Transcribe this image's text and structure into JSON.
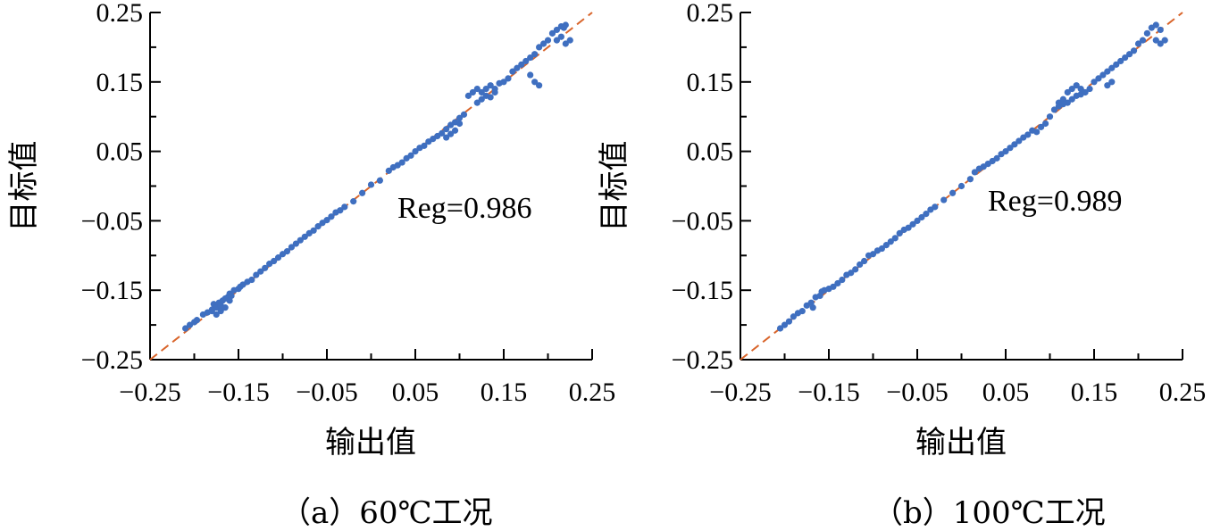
{
  "chart_data": [
    {
      "type": "scatter",
      "panel": "a",
      "caption": "（a）60℃工况",
      "xlabel": "输出值",
      "ylabel": "目标值",
      "annotation": "Reg=0.986",
      "xlim": [
        -0.25,
        0.25
      ],
      "ylim": [
        -0.25,
        0.25
      ],
      "xticks": [
        -0.25,
        -0.15,
        -0.05,
        0.05,
        0.15,
        0.25
      ],
      "yticks": [
        -0.25,
        -0.15,
        -0.05,
        0.05,
        0.15,
        0.25
      ],
      "xtick_labels": [
        "−0.25",
        "−0.15",
        "−0.05",
        "0.05",
        "0.15",
        "0.25"
      ],
      "ytick_labels": [
        "−0.25",
        "−0.15",
        "−0.05",
        "0.05",
        "0.15",
        "0.25"
      ],
      "reference_line": {
        "slope": 1,
        "intercept": 0,
        "style": "dashed",
        "color": "#d9652b"
      },
      "point_color": "#3f6fc0",
      "points": [
        [
          -0.21,
          -0.205
        ],
        [
          -0.205,
          -0.2
        ],
        [
          -0.2,
          -0.196
        ],
        [
          -0.197,
          -0.193
        ],
        [
          -0.19,
          -0.185
        ],
        [
          -0.185,
          -0.182
        ],
        [
          -0.18,
          -0.18
        ],
        [
          -0.178,
          -0.17
        ],
        [
          -0.175,
          -0.175
        ],
        [
          -0.172,
          -0.168
        ],
        [
          -0.17,
          -0.172
        ],
        [
          -0.168,
          -0.165
        ],
        [
          -0.165,
          -0.162
        ],
        [
          -0.162,
          -0.16
        ],
        [
          -0.16,
          -0.155
        ],
        [
          -0.158,
          -0.158
        ],
        [
          -0.155,
          -0.15
        ],
        [
          -0.15,
          -0.148
        ],
        [
          -0.148,
          -0.145
        ],
        [
          -0.145,
          -0.142
        ],
        [
          -0.175,
          -0.185
        ],
        [
          -0.17,
          -0.18
        ],
        [
          -0.165,
          -0.175
        ],
        [
          -0.18,
          -0.178
        ],
        [
          -0.16,
          -0.165
        ],
        [
          -0.14,
          -0.138
        ],
        [
          -0.135,
          -0.135
        ],
        [
          -0.13,
          -0.128
        ],
        [
          -0.125,
          -0.123
        ],
        [
          -0.12,
          -0.118
        ],
        [
          -0.115,
          -0.112
        ],
        [
          -0.11,
          -0.108
        ],
        [
          -0.105,
          -0.103
        ],
        [
          -0.1,
          -0.098
        ],
        [
          -0.095,
          -0.094
        ],
        [
          -0.09,
          -0.088
        ],
        [
          -0.085,
          -0.083
        ],
        [
          -0.08,
          -0.078
        ],
        [
          -0.075,
          -0.073
        ],
        [
          -0.07,
          -0.068
        ],
        [
          -0.065,
          -0.064
        ],
        [
          -0.06,
          -0.058
        ],
        [
          -0.055,
          -0.053
        ],
        [
          -0.05,
          -0.049
        ],
        [
          -0.045,
          -0.044
        ],
        [
          -0.04,
          -0.038
        ],
        [
          -0.035,
          -0.035
        ],
        [
          -0.03,
          -0.03
        ],
        [
          -0.02,
          -0.022
        ],
        [
          -0.01,
          -0.01
        ],
        [
          0.0,
          0.002
        ],
        [
          0.01,
          0.008
        ],
        [
          0.02,
          0.022
        ],
        [
          0.025,
          0.027
        ],
        [
          0.03,
          0.03
        ],
        [
          0.035,
          0.034
        ],
        [
          0.04,
          0.04
        ],
        [
          0.045,
          0.044
        ],
        [
          0.05,
          0.05
        ],
        [
          0.055,
          0.055
        ],
        [
          0.06,
          0.058
        ],
        [
          0.065,
          0.064
        ],
        [
          0.07,
          0.068
        ],
        [
          0.075,
          0.072
        ],
        [
          0.08,
          0.076
        ],
        [
          0.085,
          0.082
        ],
        [
          0.09,
          0.088
        ],
        [
          0.095,
          0.092
        ],
        [
          0.1,
          0.098
        ],
        [
          0.105,
          0.103
        ],
        [
          0.085,
          0.07
        ],
        [
          0.09,
          0.075
        ],
        [
          0.095,
          0.08
        ],
        [
          0.1,
          0.09
        ],
        [
          0.11,
          0.13
        ],
        [
          0.115,
          0.135
        ],
        [
          0.12,
          0.14
        ],
        [
          0.125,
          0.135
        ],
        [
          0.13,
          0.14
        ],
        [
          0.135,
          0.145
        ],
        [
          0.14,
          0.14
        ],
        [
          0.12,
          0.12
        ],
        [
          0.125,
          0.125
        ],
        [
          0.13,
          0.13
        ],
        [
          0.135,
          0.128
        ],
        [
          0.14,
          0.135
        ],
        [
          0.145,
          0.148
        ],
        [
          0.15,
          0.15
        ],
        [
          0.155,
          0.155
        ],
        [
          0.16,
          0.165
        ],
        [
          0.165,
          0.17
        ],
        [
          0.17,
          0.175
        ],
        [
          0.175,
          0.18
        ],
        [
          0.18,
          0.185
        ],
        [
          0.185,
          0.19
        ],
        [
          0.18,
          0.16
        ],
        [
          0.185,
          0.15
        ],
        [
          0.19,
          0.145
        ],
        [
          0.19,
          0.2
        ],
        [
          0.195,
          0.205
        ],
        [
          0.2,
          0.21
        ],
        [
          0.205,
          0.22
        ],
        [
          0.21,
          0.225
        ],
        [
          0.215,
          0.23
        ],
        [
          0.22,
          0.232
        ],
        [
          0.21,
          0.21
        ],
        [
          0.215,
          0.215
        ],
        [
          0.22,
          0.205
        ],
        [
          0.225,
          0.21
        ],
        [
          0.218,
          0.228
        ]
      ]
    },
    {
      "type": "scatter",
      "panel": "b",
      "caption": "（b）100℃工况",
      "xlabel": "输出值",
      "ylabel": "目标值",
      "annotation": "Reg=0.989",
      "xlim": [
        -0.25,
        0.25
      ],
      "ylim": [
        -0.25,
        0.25
      ],
      "xticks": [
        -0.25,
        -0.15,
        -0.05,
        0.05,
        0.15,
        0.25
      ],
      "yticks": [
        -0.25,
        -0.15,
        -0.05,
        0.05,
        0.15,
        0.25
      ],
      "xtick_labels": [
        "−0.25",
        "−0.15",
        "−0.05",
        "0.05",
        "0.15",
        "0.25"
      ],
      "ytick_labels": [
        "−0.25",
        "−0.15",
        "−0.05",
        "0.05",
        "0.15",
        "0.25"
      ],
      "reference_line": {
        "slope": 1,
        "intercept": 0,
        "style": "dashed",
        "color": "#d9652b"
      },
      "point_color": "#3f6fc0",
      "points": [
        [
          -0.205,
          -0.205
        ],
        [
          -0.2,
          -0.2
        ],
        [
          -0.195,
          -0.195
        ],
        [
          -0.19,
          -0.188
        ],
        [
          -0.185,
          -0.183
        ],
        [
          -0.18,
          -0.18
        ],
        [
          -0.175,
          -0.172
        ],
        [
          -0.17,
          -0.168
        ],
        [
          -0.168,
          -0.175
        ],
        [
          -0.165,
          -0.16
        ],
        [
          -0.16,
          -0.158
        ],
        [
          -0.158,
          -0.152
        ],
        [
          -0.155,
          -0.15
        ],
        [
          -0.15,
          -0.148
        ],
        [
          -0.145,
          -0.145
        ],
        [
          -0.14,
          -0.14
        ],
        [
          -0.135,
          -0.135
        ],
        [
          -0.13,
          -0.128
        ],
        [
          -0.125,
          -0.125
        ],
        [
          -0.12,
          -0.12
        ],
        [
          -0.115,
          -0.113
        ],
        [
          -0.11,
          -0.108
        ],
        [
          -0.105,
          -0.1
        ],
        [
          -0.1,
          -0.098
        ],
        [
          -0.095,
          -0.093
        ],
        [
          -0.09,
          -0.09
        ],
        [
          -0.085,
          -0.085
        ],
        [
          -0.08,
          -0.08
        ],
        [
          -0.075,
          -0.075
        ],
        [
          -0.07,
          -0.068
        ],
        [
          -0.065,
          -0.063
        ],
        [
          -0.06,
          -0.06
        ],
        [
          -0.055,
          -0.055
        ],
        [
          -0.05,
          -0.05
        ],
        [
          -0.045,
          -0.045
        ],
        [
          -0.04,
          -0.04
        ],
        [
          -0.035,
          -0.034
        ],
        [
          -0.03,
          -0.03
        ],
        [
          -0.02,
          -0.02
        ],
        [
          -0.01,
          -0.01
        ],
        [
          0.0,
          0.0
        ],
        [
          0.01,
          0.01
        ],
        [
          0.015,
          0.02
        ],
        [
          0.02,
          0.025
        ],
        [
          0.025,
          0.028
        ],
        [
          0.03,
          0.032
        ],
        [
          0.035,
          0.036
        ],
        [
          0.04,
          0.04
        ],
        [
          0.045,
          0.046
        ],
        [
          0.05,
          0.05
        ],
        [
          0.055,
          0.055
        ],
        [
          0.06,
          0.06
        ],
        [
          0.065,
          0.065
        ],
        [
          0.07,
          0.07
        ],
        [
          0.075,
          0.074
        ],
        [
          0.08,
          0.08
        ],
        [
          0.085,
          0.078
        ],
        [
          0.09,
          0.085
        ],
        [
          0.095,
          0.09
        ],
        [
          0.1,
          0.1
        ],
        [
          0.105,
          0.11
        ],
        [
          0.11,
          0.12
        ],
        [
          0.115,
          0.125
        ],
        [
          0.12,
          0.135
        ],
        [
          0.125,
          0.14
        ],
        [
          0.13,
          0.145
        ],
        [
          0.135,
          0.14
        ],
        [
          0.14,
          0.135
        ],
        [
          0.145,
          0.14
        ],
        [
          0.15,
          0.15
        ],
        [
          0.12,
          0.12
        ],
        [
          0.125,
          0.125
        ],
        [
          0.13,
          0.13
        ],
        [
          0.135,
          0.132
        ],
        [
          0.11,
          0.115
        ],
        [
          0.115,
          0.118
        ],
        [
          0.155,
          0.155
        ],
        [
          0.16,
          0.16
        ],
        [
          0.165,
          0.165
        ],
        [
          0.17,
          0.17
        ],
        [
          0.175,
          0.175
        ],
        [
          0.18,
          0.18
        ],
        [
          0.185,
          0.185
        ],
        [
          0.19,
          0.19
        ],
        [
          0.195,
          0.195
        ],
        [
          0.2,
          0.205
        ],
        [
          0.205,
          0.21
        ],
        [
          0.21,
          0.22
        ],
        [
          0.215,
          0.228
        ],
        [
          0.22,
          0.232
        ],
        [
          0.225,
          0.225
        ],
        [
          0.22,
          0.21
        ],
        [
          0.225,
          0.205
        ],
        [
          0.23,
          0.21
        ],
        [
          0.165,
          0.145
        ],
        [
          0.17,
          0.15
        ]
      ]
    }
  ]
}
